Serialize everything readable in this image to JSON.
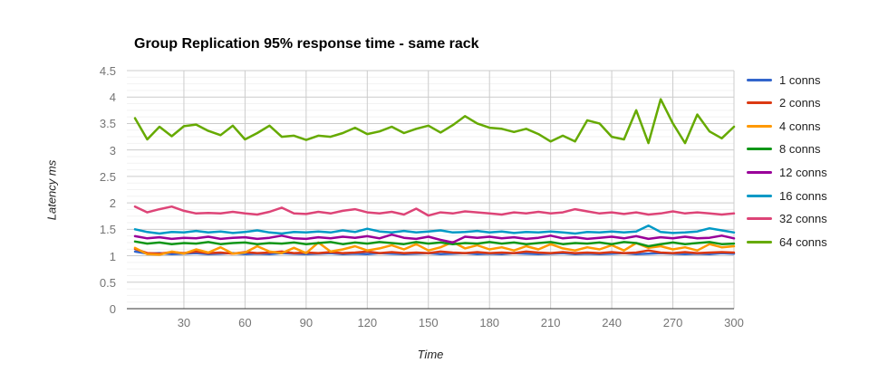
{
  "title": "Group Replication 95% response time - same rack",
  "chart_data": {
    "type": "line",
    "title": "Group Replication 95% response time - same rack",
    "xlabel": "Time",
    "ylabel": "Latency ms",
    "xlim": [
      2,
      300
    ],
    "ylim": [
      0,
      4.5
    ],
    "x_ticks": [
      30,
      60,
      90,
      120,
      150,
      180,
      210,
      240,
      270,
      300
    ],
    "y_ticks": [
      0,
      0.5,
      1,
      1.5,
      2,
      2.5,
      3,
      3.5,
      4,
      4.5
    ],
    "y_tick_labels": [
      "0",
      "0.5",
      "1",
      "1.5",
      "2",
      "2.5",
      "3",
      "3.5",
      "4",
      "4.5"
    ],
    "grid": "major horizontal+vertical, minor horizontal every 0.125",
    "legend_position": "right",
    "x": [
      6,
      12,
      18,
      24,
      30,
      36,
      42,
      48,
      54,
      60,
      66,
      72,
      78,
      84,
      90,
      96,
      102,
      108,
      114,
      120,
      126,
      132,
      138,
      144,
      150,
      156,
      162,
      168,
      174,
      180,
      186,
      192,
      198,
      204,
      210,
      216,
      222,
      228,
      234,
      240,
      246,
      252,
      258,
      264,
      270,
      276,
      282,
      288,
      294,
      300
    ],
    "series": [
      {
        "name": "1 conns",
        "color": "#3366cc",
        "values": [
          1.08,
          1.04,
          1.05,
          1.03,
          1.04,
          1.05,
          1.03,
          1.04,
          1.05,
          1.03,
          1.04,
          1.03,
          1.05,
          1.04,
          1.03,
          1.04,
          1.05,
          1.03,
          1.04,
          1.03,
          1.05,
          1.04,
          1.03,
          1.04,
          1.05,
          1.03,
          1.04,
          1.05,
          1.03,
          1.04,
          1.03,
          1.05,
          1.04,
          1.03,
          1.04,
          1.05,
          1.03,
          1.04,
          1.03,
          1.04,
          1.05,
          1.03,
          1.04,
          1.05,
          1.04,
          1.03,
          1.04,
          1.03,
          1.05,
          1.04
        ]
      },
      {
        "name": "2 conns",
        "color": "#dc3912",
        "values": [
          1.13,
          1.05,
          1.04,
          1.07,
          1.05,
          1.08,
          1.05,
          1.06,
          1.04,
          1.07,
          1.05,
          1.06,
          1.08,
          1.05,
          1.06,
          1.05,
          1.07,
          1.05,
          1.06,
          1.08,
          1.05,
          1.07,
          1.05,
          1.06,
          1.05,
          1.08,
          1.06,
          1.05,
          1.07,
          1.05,
          1.06,
          1.05,
          1.08,
          1.06,
          1.05,
          1.07,
          1.05,
          1.06,
          1.05,
          1.07,
          1.05,
          1.06,
          1.1,
          1.06,
          1.05,
          1.07,
          1.05,
          1.06,
          1.07,
          1.06
        ]
      },
      {
        "name": "4 conns",
        "color": "#ff9900",
        "values": [
          1.15,
          1.03,
          1.02,
          1.08,
          1.04,
          1.12,
          1.06,
          1.16,
          1.04,
          1.06,
          1.18,
          1.08,
          1.05,
          1.15,
          1.05,
          1.25,
          1.08,
          1.12,
          1.18,
          1.1,
          1.14,
          1.2,
          1.12,
          1.22,
          1.1,
          1.16,
          1.26,
          1.14,
          1.2,
          1.12,
          1.16,
          1.1,
          1.18,
          1.12,
          1.22,
          1.14,
          1.1,
          1.16,
          1.12,
          1.2,
          1.1,
          1.24,
          1.15,
          1.18,
          1.12,
          1.16,
          1.1,
          1.22,
          1.16,
          1.18
        ]
      },
      {
        "name": "8 conns",
        "color": "#109618",
        "values": [
          1.27,
          1.23,
          1.25,
          1.22,
          1.24,
          1.23,
          1.26,
          1.22,
          1.24,
          1.25,
          1.22,
          1.24,
          1.23,
          1.25,
          1.22,
          1.24,
          1.26,
          1.22,
          1.25,
          1.23,
          1.26,
          1.24,
          1.22,
          1.26,
          1.23,
          1.25,
          1.22,
          1.24,
          1.23,
          1.26,
          1.23,
          1.25,
          1.22,
          1.24,
          1.26,
          1.22,
          1.24,
          1.23,
          1.25,
          1.22,
          1.26,
          1.24,
          1.18,
          1.22,
          1.25,
          1.22,
          1.24,
          1.26,
          1.22,
          1.23
        ]
      },
      {
        "name": "12 conns",
        "color": "#990099",
        "values": [
          1.37,
          1.33,
          1.35,
          1.32,
          1.34,
          1.33,
          1.36,
          1.32,
          1.34,
          1.35,
          1.32,
          1.34,
          1.38,
          1.33,
          1.32,
          1.35,
          1.33,
          1.36,
          1.34,
          1.37,
          1.33,
          1.4,
          1.34,
          1.32,
          1.36,
          1.3,
          1.25,
          1.36,
          1.34,
          1.36,
          1.33,
          1.35,
          1.32,
          1.34,
          1.38,
          1.33,
          1.35,
          1.32,
          1.34,
          1.36,
          1.33,
          1.37,
          1.32,
          1.35,
          1.33,
          1.36,
          1.33,
          1.34,
          1.38,
          1.33
        ]
      },
      {
        "name": "16 conns",
        "color": "#0099c6",
        "values": [
          1.5,
          1.45,
          1.42,
          1.45,
          1.44,
          1.47,
          1.44,
          1.46,
          1.43,
          1.45,
          1.48,
          1.44,
          1.42,
          1.45,
          1.44,
          1.46,
          1.44,
          1.48,
          1.45,
          1.51,
          1.46,
          1.44,
          1.47,
          1.44,
          1.46,
          1.48,
          1.44,
          1.45,
          1.47,
          1.44,
          1.46,
          1.43,
          1.45,
          1.44,
          1.46,
          1.44,
          1.42,
          1.45,
          1.44,
          1.46,
          1.44,
          1.46,
          1.57,
          1.45,
          1.43,
          1.44,
          1.46,
          1.52,
          1.48,
          1.44
        ]
      },
      {
        "name": "32 conns",
        "color": "#dd4477",
        "values": [
          1.93,
          1.82,
          1.88,
          1.93,
          1.85,
          1.8,
          1.81,
          1.8,
          1.83,
          1.8,
          1.78,
          1.83,
          1.91,
          1.8,
          1.79,
          1.83,
          1.8,
          1.85,
          1.88,
          1.82,
          1.8,
          1.83,
          1.78,
          1.89,
          1.76,
          1.82,
          1.8,
          1.84,
          1.82,
          1.8,
          1.78,
          1.82,
          1.8,
          1.83,
          1.8,
          1.82,
          1.88,
          1.84,
          1.8,
          1.82,
          1.79,
          1.82,
          1.78,
          1.8,
          1.84,
          1.8,
          1.82,
          1.8,
          1.78,
          1.8
        ]
      },
      {
        "name": "64 conns",
        "color": "#66aa00",
        "values": [
          3.6,
          3.2,
          3.44,
          3.26,
          3.45,
          3.48,
          3.36,
          3.28,
          3.46,
          3.2,
          3.32,
          3.46,
          3.25,
          3.27,
          3.19,
          3.27,
          3.25,
          3.32,
          3.42,
          3.3,
          3.35,
          3.44,
          3.32,
          3.4,
          3.46,
          3.33,
          3.47,
          3.64,
          3.5,
          3.42,
          3.4,
          3.34,
          3.4,
          3.3,
          3.16,
          3.27,
          3.16,
          3.56,
          3.5,
          3.25,
          3.2,
          3.75,
          3.13,
          3.96,
          3.5,
          3.13,
          3.67,
          3.35,
          3.22,
          3.44
        ]
      }
    ],
    "colors": {
      "major_gridline": "#cccccc",
      "minor_gridline": "#f2f2f2",
      "axis_baseline": "#333333",
      "tick_label": "#757575",
      "background": "#ffffff"
    }
  }
}
